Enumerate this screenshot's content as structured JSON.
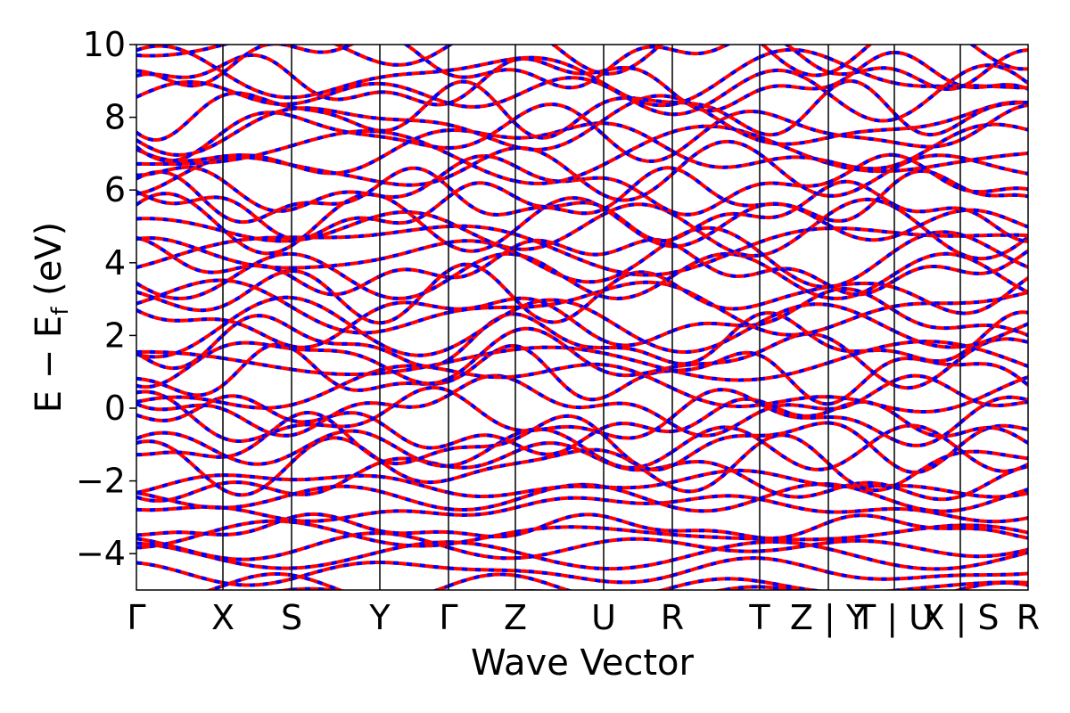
{
  "chart_data": {
    "type": "line",
    "title": "",
    "xlabel": "Wave Vector",
    "ylabel": "E − E",
    "ylabel_sub": "f",
    "ylabel_unit": " (eV)",
    "ylim": [
      -5,
      10
    ],
    "yticks": [
      -4,
      -2,
      0,
      2,
      4,
      6,
      8,
      10
    ],
    "ytick_labels": [
      "−4",
      "−2",
      "0",
      "2",
      "4",
      "6",
      "8",
      "10"
    ],
    "xlim": [
      0,
      10.0
    ],
    "kpoints": [
      {
        "label": "Γ",
        "x": 0.0
      },
      {
        "label": "X",
        "x": 0.97
      },
      {
        "label": "S",
        "x": 1.74
      },
      {
        "label": "Y",
        "x": 2.73
      },
      {
        "label": "Γ",
        "x": 3.5
      },
      {
        "label": "Z",
        "x": 4.25
      },
      {
        "label": "U",
        "x": 5.24
      },
      {
        "label": "R",
        "x": 6.01
      },
      {
        "label": "T",
        "x": 6.99
      },
      {
        "label": "Z | Y",
        "x": 7.76
      },
      {
        "label": "T | U",
        "x": 8.5
      },
      {
        "label": "X | S",
        "x": 9.24
      },
      {
        "label": "R",
        "x": 10.0
      }
    ],
    "series": [
      {
        "color": "#ff0000",
        "style": "solid"
      },
      {
        "color": "#0000ff",
        "style": "dashed"
      }
    ],
    "grid": false
  }
}
